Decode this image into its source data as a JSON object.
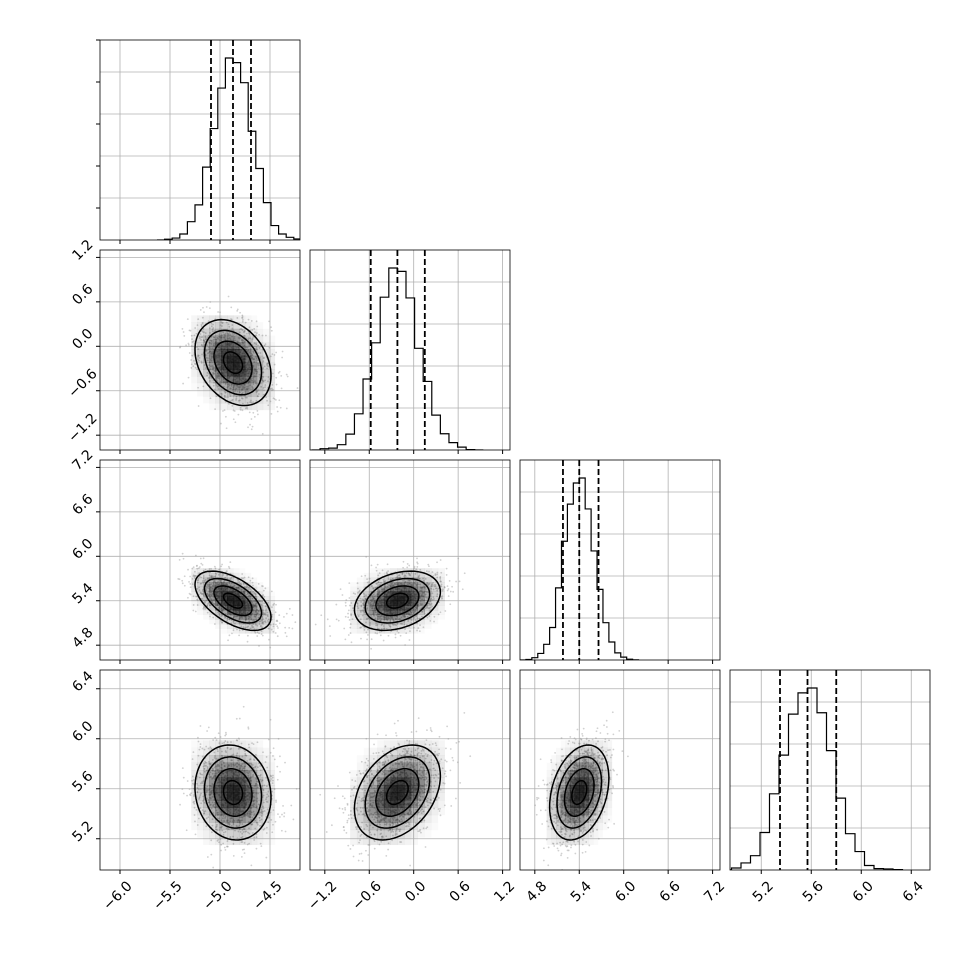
{
  "chart_data": {
    "type": "corner",
    "title": "",
    "parameters": [
      {
        "range": [
          -6.2,
          -4.2
        ],
        "ticks": [
          -6.0,
          -5.5,
          -5.0,
          -4.5
        ],
        "tick_labels": [
          "−6.0",
          "−5.5",
          "−5.0",
          "−4.5"
        ],
        "mean": -4.87,
        "sd": 0.19,
        "quantiles": [
          -5.09,
          -4.87,
          -4.69
        ]
      },
      {
        "range": [
          -1.4,
          1.3
        ],
        "ticks": [
          -1.2,
          -0.6,
          0.0,
          0.6,
          1.2
        ],
        "tick_labels": [
          "−1.2",
          "−0.6",
          "0.0",
          "0.6",
          "1.2"
        ],
        "mean": -0.22,
        "sd": 0.29,
        "quantiles": [
          -0.58,
          -0.22,
          0.15
        ]
      },
      {
        "range": [
          4.6,
          7.3
        ],
        "ticks": [
          4.8,
          5.4,
          6.0,
          6.6,
          7.2
        ],
        "tick_labels": [
          "4.8",
          "5.4",
          "6.0",
          "6.6",
          "7.2"
        ],
        "mean": 5.4,
        "sd": 0.2,
        "quantiles": [
          5.18,
          5.4,
          5.66
        ]
      },
      {
        "range": [
          4.95,
          6.55
        ],
        "ticks": [
          5.2,
          5.6,
          6.0,
          6.4
        ],
        "tick_labels": [
          "5.2",
          "5.6",
          "6.0",
          "6.4"
        ],
        "mean": 5.57,
        "sd": 0.19,
        "quantiles": [
          5.35,
          5.57,
          5.8
        ]
      }
    ],
    "correlations": [
      {
        "pair": [
          1,
          0
        ],
        "rho": -0.3
      },
      {
        "pair": [
          2,
          0
        ],
        "rho": -0.55
      },
      {
        "pair": [
          2,
          1
        ],
        "rho": 0.3
      },
      {
        "pair": [
          3,
          0
        ],
        "rho": -0.1
      },
      {
        "pair": [
          3,
          1
        ],
        "rho": 0.35
      },
      {
        "pair": [
          3,
          2
        ],
        "rho": 0.3
      }
    ],
    "grid": true,
    "contour_levels_sigma": [
      0.5,
      1.0,
      1.5,
      2.0
    ],
    "colors": {
      "points": "#9a9a9a",
      "density": "#000000",
      "lines": "#000000",
      "grid": "#b0b0b0"
    }
  }
}
